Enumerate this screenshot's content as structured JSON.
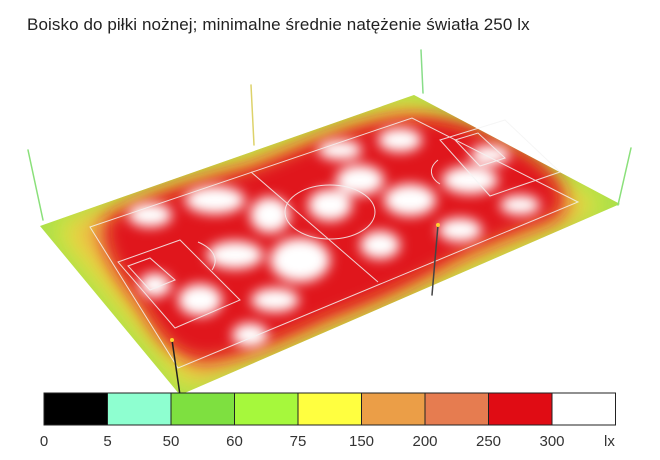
{
  "title": "Boisko do piłki nożnej; minimalne średnie natężenie światła 250 lx",
  "legend": {
    "unit": "lx",
    "ticks": [
      "0",
      "5",
      "50",
      "60",
      "75",
      "150",
      "200",
      "250",
      "300"
    ],
    "colors": [
      "#000000",
      "#8effd0",
      "#7ee040",
      "#a6f83c",
      "#ffff40",
      "#eb9e47",
      "#e67c50",
      "#e00c14",
      "#ffffff"
    ]
  },
  "colors": {
    "edge_green": "#6fd84c",
    "edge_yellow": "#f2ea3a",
    "mid_orange": "#e89a40",
    "hot_red": "#e00c14"
  }
}
